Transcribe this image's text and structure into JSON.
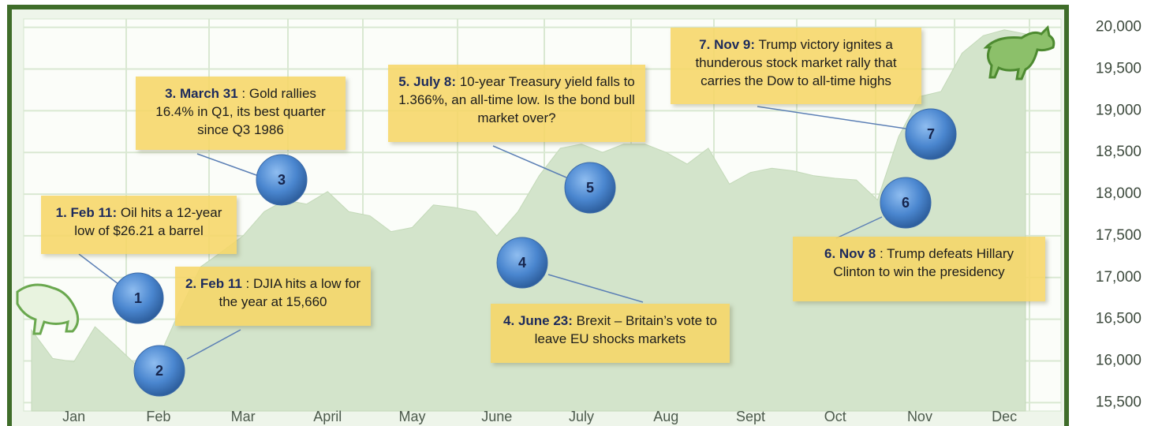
{
  "chart_data": {
    "type": "area",
    "categories": [
      null,
      null,
      "Jan",
      null,
      null,
      null,
      "Feb",
      null,
      null,
      null,
      "Mar",
      null,
      null,
      null,
      "April",
      null,
      null,
      null,
      "May",
      null,
      null,
      null,
      "June",
      null,
      null,
      null,
      "July",
      null,
      null,
      null,
      "Aug",
      null,
      null,
      null,
      "Sept",
      null,
      null,
      null,
      "Oct",
      null,
      null,
      null,
      "Nov",
      null,
      null,
      null,
      "Dec",
      null
    ],
    "series": [
      {
        "color": "#d3e4cb",
        "values": [
          16370,
          16030,
          15990,
          16410,
          16180,
          15940,
          16030,
          16600,
          17130,
          17310,
          17500,
          17790,
          17930,
          17880,
          18030,
          17790,
          17740,
          17550,
          17600,
          17870,
          17840,
          17790,
          17500,
          17790,
          18220,
          18550,
          18600,
          18500,
          18600,
          18600,
          18500,
          18360,
          18550,
          18120,
          18260,
          18310,
          18280,
          18220,
          18190,
          18170,
          17930,
          18690,
          19170,
          19230,
          19690,
          19900,
          19970,
          19920
        ]
      }
    ],
    "ylim": [
      15400,
      20100
    ],
    "yticks": [
      {
        "value": 15500,
        "label": "15,500"
      },
      {
        "value": 16000,
        "label": "16,000"
      },
      {
        "value": 16500,
        "label": "16,500"
      },
      {
        "value": 17000,
        "label": "17,000"
      },
      {
        "value": 17500,
        "label": "17,500"
      },
      {
        "value": 18000,
        "label": "18,000"
      },
      {
        "value": 18500,
        "label": "18,500"
      },
      {
        "value": 19000,
        "label": "19,000"
      },
      {
        "value": 19500,
        "label": "19,500"
      },
      {
        "value": 20000,
        "label": "20,000"
      }
    ],
    "grid": true,
    "annotations": [
      {
        "marker": "1",
        "label": "1. Feb 11:",
        "text": "Oil hits a 12-year low of $26.21 a barrel"
      },
      {
        "marker": "2",
        "label": "2. Feb 11",
        "text": ": DJIA hits a low for the year at 15,660"
      },
      {
        "marker": "3",
        "label": "3. March 31",
        "text": ": Gold rallies 16.4% in Q1, its best quarter since Q3 1986"
      },
      {
        "marker": "4",
        "label": "4. June 23:",
        "text": "Brexit – Britain’s vote to leave EU shocks markets"
      },
      {
        "marker": "5",
        "label": "5. July 8:",
        "text": "10-year Treasury yield falls to 1.366%, an all-time low. Is the bond bull market over?"
      },
      {
        "marker": "6",
        "label": "6. Nov 8",
        "text": ": Trump defeats Hillary Clinton to win the presidency"
      },
      {
        "marker": "7",
        "label": "7. Nov 9:",
        "text": "Trump victory ignites a thunderous stock market rally that carries the Dow to all-time highs"
      }
    ]
  }
}
